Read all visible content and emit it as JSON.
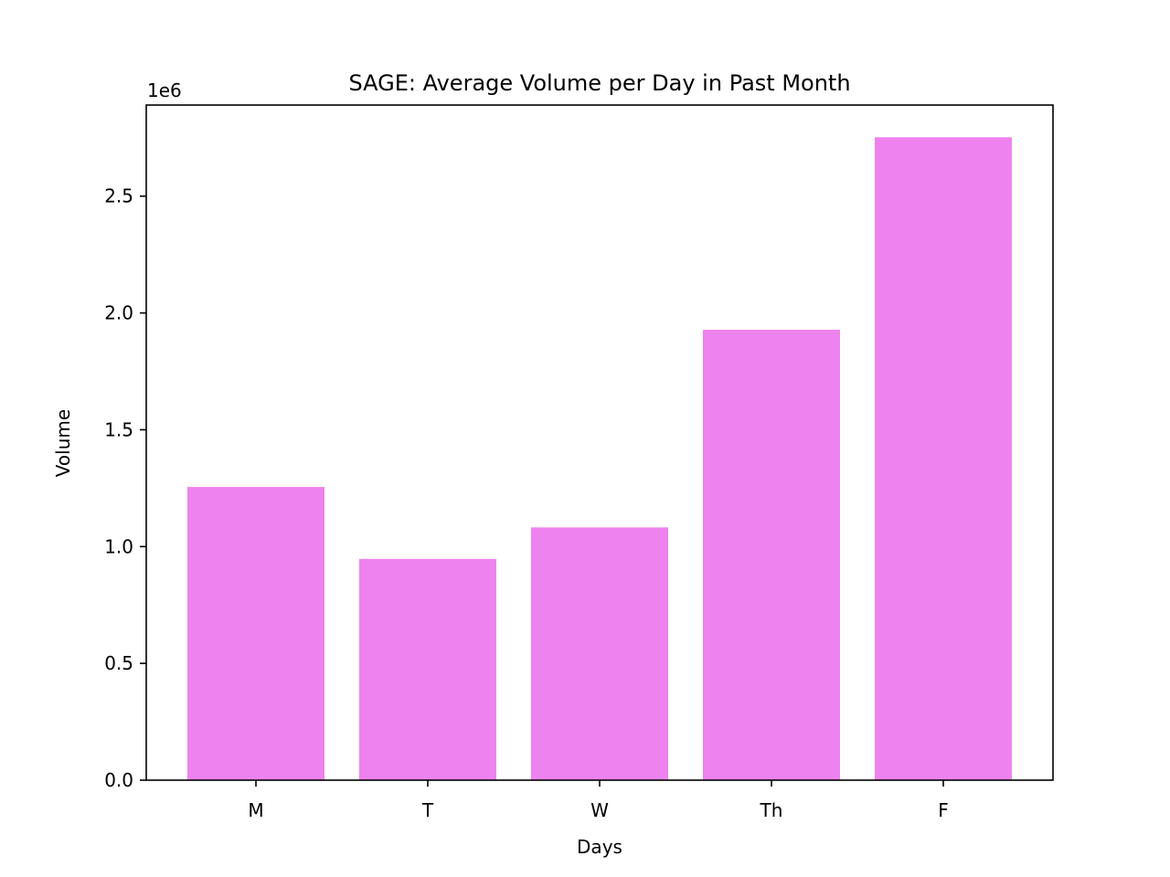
{
  "chart_data": {
    "type": "bar",
    "title": "SAGE: Average Volume per Day in Past Month",
    "xlabel": "Days",
    "ylabel": "Volume",
    "offset_label": "1e6",
    "categories": [
      "M",
      "T",
      "W",
      "Th",
      "F"
    ],
    "values": [
      1255000,
      947000,
      1082000,
      1928000,
      2752000
    ],
    "ylim": [
      0,
      2890000
    ],
    "yticks": [
      0,
      500000,
      1000000,
      1500000,
      2000000,
      2500000
    ],
    "ytick_labels": [
      "0.0",
      "0.5",
      "1.0",
      "1.5",
      "2.0",
      "2.5"
    ],
    "bar_color": "#ee82ee",
    "grid": false,
    "legend": "none"
  }
}
